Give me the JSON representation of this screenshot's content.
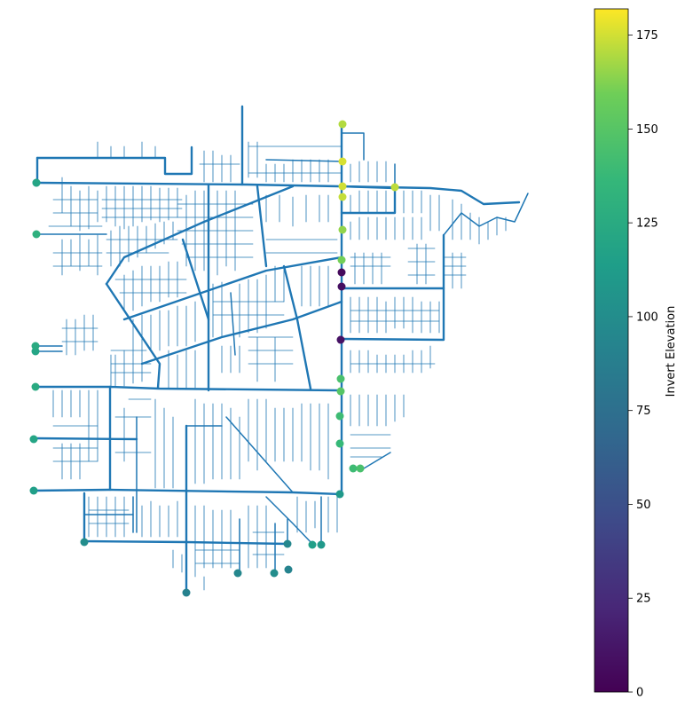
{
  "colorbar": {
    "label": "Invert Elevation",
    "vmin": 0,
    "vmax": 182,
    "ticks": [
      0,
      25,
      50,
      75,
      100,
      125,
      150,
      175
    ],
    "colormap": "viridis"
  },
  "colors": {
    "pipe": "#1f77b4",
    "background": "#ffffff"
  },
  "outfalls": [
    {
      "id": "o1",
      "value": 170
    },
    {
      "id": "o2",
      "value": 176
    },
    {
      "id": "o3",
      "value": 175
    },
    {
      "id": "o4",
      "value": 173
    },
    {
      "id": "o5",
      "value": 172
    },
    {
      "id": "o6",
      "value": 165
    },
    {
      "id": "o7",
      "value": 160
    },
    {
      "id": "o8",
      "value": 5
    },
    {
      "id": "o9",
      "value": 8
    },
    {
      "id": "o10",
      "value": 10
    },
    {
      "id": "o11",
      "value": 145
    },
    {
      "id": "o12",
      "value": 150
    },
    {
      "id": "o13",
      "value": 140
    },
    {
      "id": "o14",
      "value": 137
    },
    {
      "id": "o15",
      "value": 140
    },
    {
      "id": "o16",
      "value": 145
    },
    {
      "id": "o17",
      "value": 110
    },
    {
      "id": "o18",
      "value": 115
    },
    {
      "id": "o19",
      "value": 110
    },
    {
      "id": "o20",
      "value": 95
    },
    {
      "id": "o21",
      "value": 92
    },
    {
      "id": "o22",
      "value": 100
    },
    {
      "id": "o23",
      "value": 95
    },
    {
      "id": "o24",
      "value": 90
    },
    {
      "id": "o25",
      "value": 100
    },
    {
      "id": "o26",
      "value": 115
    },
    {
      "id": "o27",
      "value": 120
    },
    {
      "id": "o28",
      "value": 125
    },
    {
      "id": "o29",
      "value": 120
    },
    {
      "id": "o30",
      "value": 125
    },
    {
      "id": "o31",
      "value": 130
    },
    {
      "id": "o32",
      "value": 110
    },
    {
      "id": "o33",
      "value": 120
    }
  ]
}
